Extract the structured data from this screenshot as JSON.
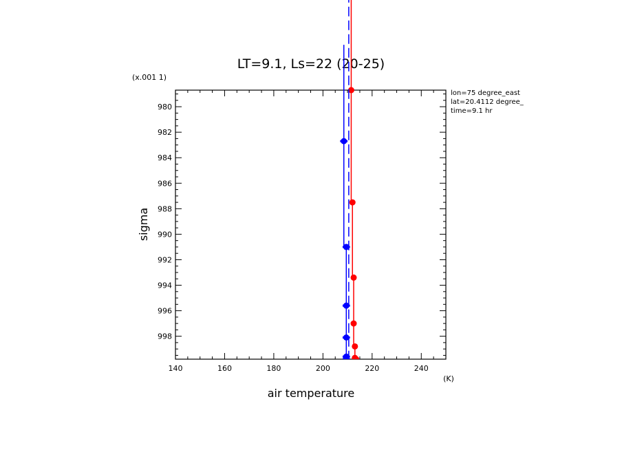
{
  "chart_data": {
    "type": "line",
    "title": "LT=9.1, Ls=22 (20-25)",
    "xlabel": "air temperature",
    "xunit": "(K)",
    "ylabel": "sigma",
    "yscale_note": "(x.001 1)",
    "xlim": [
      140,
      250
    ],
    "ylim": [
      978.7,
      999.8
    ],
    "y_inverted": true,
    "x_ticks": [
      140,
      160,
      180,
      200,
      220,
      240
    ],
    "y_ticks": [
      980,
      982,
      984,
      986,
      988,
      990,
      992,
      994,
      996,
      998
    ],
    "annotations": [
      "lon=75 degree_east",
      "lat=20.4112 degree_",
      "time=9.1 hr"
    ],
    "series": [
      {
        "color": "#ff0000",
        "style": "solid-step-errorbars",
        "x": [
          211.5,
          212.0,
          212.5,
          212.5,
          213.0,
          213.0,
          213.5
        ],
        "y": [
          978.7,
          987.5,
          993.4,
          997.0,
          998.8,
          999.7,
          999.8
        ],
        "xerr": [
          1.0,
          1.0,
          1.0,
          1.0,
          1.0,
          1.0,
          1.0
        ]
      },
      {
        "color": "#0000ff",
        "style": "solid-step-errorbars",
        "x": [
          208.5,
          209.5,
          209.5,
          209.5,
          209.5,
          209.5
        ],
        "y": [
          982.7,
          991.0,
          995.6,
          998.1,
          999.6,
          999.8
        ],
        "xerr": [
          1.5,
          1.5,
          1.5,
          1.5,
          1.5,
          1.5
        ]
      },
      {
        "color": "#0000ff",
        "style": "dashed",
        "x": [
          210.5,
          210.5,
          210.5,
          210.5,
          210.5
        ],
        "y": [
          970.0,
          982.7,
          991.0,
          995.6,
          999.8
        ]
      }
    ]
  }
}
